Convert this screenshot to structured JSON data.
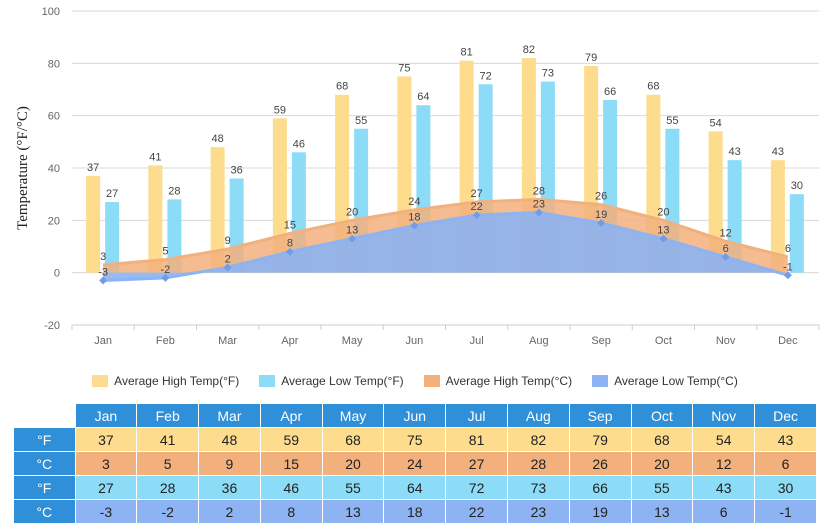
{
  "chart_data": {
    "type": "bar",
    "categories": [
      "Jan",
      "Feb",
      "Mar",
      "Apr",
      "May",
      "Jun",
      "Jul",
      "Aug",
      "Sep",
      "Oct",
      "Nov",
      "Dec"
    ],
    "ylabel": "Temperature (°F/°C)",
    "ylim": [
      -20,
      100
    ],
    "yticks": [
      -20,
      0,
      20,
      40,
      60,
      80,
      100
    ],
    "grid": true,
    "legend_position": "bottom",
    "series": [
      {
        "name": "Average High Temp(°F)",
        "type": "bar",
        "color": "#fddc8e",
        "values": [
          37,
          41,
          48,
          59,
          68,
          75,
          81,
          82,
          79,
          68,
          54,
          43
        ]
      },
      {
        "name": "Average Low Temp(°F)",
        "type": "bar",
        "color": "#8cdcf7",
        "values": [
          27,
          28,
          36,
          46,
          55,
          64,
          72,
          73,
          66,
          55,
          43,
          30
        ]
      },
      {
        "name": "Average High Temp(°C)",
        "type": "area",
        "color": "#f2b07c",
        "values": [
          3,
          5,
          9,
          15,
          20,
          24,
          27,
          28,
          26,
          20,
          12,
          6
        ]
      },
      {
        "name": "Average Low Temp(°C)",
        "type": "area",
        "color": "#8db3f2",
        "values": [
          -3,
          -2,
          2,
          8,
          13,
          18,
          22,
          23,
          19,
          13,
          6,
          -1
        ]
      }
    ]
  },
  "table": {
    "months": [
      "Jan",
      "Feb",
      "Mar",
      "Apr",
      "May",
      "Jun",
      "Jul",
      "Aug",
      "Sep",
      "Oct",
      "Nov",
      "Dec"
    ],
    "rows": [
      {
        "unit": "°F",
        "values": [
          "37",
          "41",
          "48",
          "59",
          "68",
          "75",
          "81",
          "82",
          "79",
          "68",
          "54",
          "43"
        ]
      },
      {
        "unit": "°C",
        "values": [
          "3",
          "5",
          "9",
          "15",
          "20",
          "24",
          "27",
          "28",
          "26",
          "20",
          "12",
          "6"
        ]
      },
      {
        "unit": "°F",
        "values": [
          "27",
          "28",
          "36",
          "46",
          "55",
          "64",
          "72",
          "73",
          "66",
          "55",
          "43",
          "30"
        ]
      },
      {
        "unit": "°C",
        "values": [
          "-3",
          "-2",
          "2",
          "8",
          "13",
          "18",
          "22",
          "23",
          "19",
          "13",
          "6",
          "-1"
        ]
      }
    ]
  }
}
